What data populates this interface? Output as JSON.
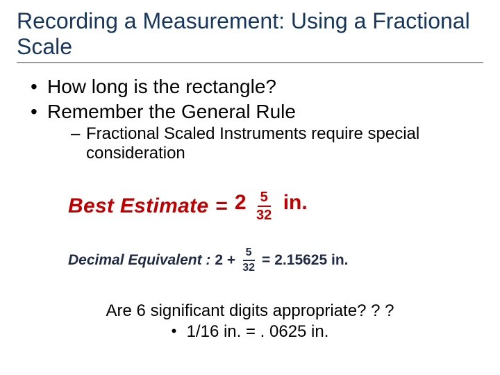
{
  "colors": {
    "title": "#17365d",
    "accent_red": "#c00000",
    "accent_blue": "#1f2a44",
    "text": "#000000",
    "underline": "#303030",
    "background": "#ffffff"
  },
  "title": "Recording a Measurement: Using a Fractional Scale",
  "bullets": [
    "How long is the rectangle?",
    "Remember the General Rule"
  ],
  "subbullet": "Fractional Scaled Instruments require special consideration",
  "best_estimate": {
    "label": "Best Estimate",
    "equals": "=",
    "whole": "2",
    "numerator": "5",
    "denominator": "32",
    "unit": "in."
  },
  "decimal_equivalent": {
    "label": "Decimal Equivalent :",
    "lhs_whole": "2 +",
    "numerator": "5",
    "denominator": "32",
    "equals": "=",
    "result": "2.15625 in."
  },
  "footer": {
    "line1": "Are 6 significant digits appropriate? ? ?",
    "line2": "1/16 in. = . 0625 in."
  },
  "typography": {
    "title_fontsize": 32,
    "bullet_l1_fontsize": 28,
    "bullet_l2_fontsize": 24,
    "best_estimate_fontsize": 30,
    "decimal_fontsize": 21,
    "footer_fontsize": 24
  }
}
